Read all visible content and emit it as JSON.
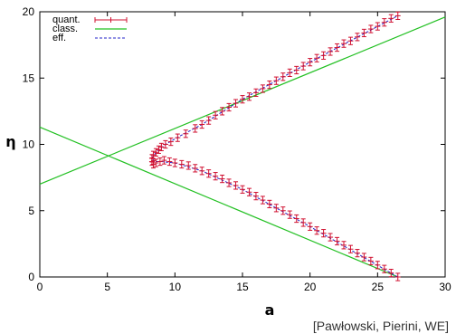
{
  "chart_data": {
    "type": "line",
    "xlabel": "a",
    "ylabel": "η",
    "xlim": [
      0,
      30
    ],
    "ylim": [
      0,
      20
    ],
    "x_ticks": [
      "0",
      "5",
      "10",
      "15",
      "20",
      "25",
      "30"
    ],
    "y_ticks": [
      "0",
      "5",
      "10",
      "15",
      "20"
    ],
    "legend_position": "top-left",
    "grid": false,
    "series": [
      {
        "name": "quant.",
        "style": "errorbar",
        "color": "#d01030",
        "error": 0.28,
        "points": [
          [
            26.5,
            0.0
          ],
          [
            26.0,
            0.3
          ],
          [
            25.5,
            0.6
          ],
          [
            25.0,
            0.9
          ],
          [
            24.5,
            1.2
          ],
          [
            24.0,
            1.5
          ],
          [
            23.5,
            1.8
          ],
          [
            23.0,
            2.1
          ],
          [
            22.5,
            2.4
          ],
          [
            22.0,
            2.7
          ],
          [
            21.5,
            3.0
          ],
          [
            21.0,
            3.3
          ],
          [
            20.5,
            3.5
          ],
          [
            20.0,
            3.8
          ],
          [
            19.5,
            4.1
          ],
          [
            19.0,
            4.4
          ],
          [
            18.5,
            4.7
          ],
          [
            18.0,
            5.0
          ],
          [
            17.5,
            5.2
          ],
          [
            17.0,
            5.5
          ],
          [
            16.5,
            5.8
          ],
          [
            16.0,
            6.1
          ],
          [
            15.5,
            6.4
          ],
          [
            15.0,
            6.6
          ],
          [
            14.5,
            6.9
          ],
          [
            14.0,
            7.1
          ],
          [
            13.5,
            7.4
          ],
          [
            13.0,
            7.6
          ],
          [
            12.5,
            7.8
          ],
          [
            12.0,
            8.0
          ],
          [
            11.5,
            8.2
          ],
          [
            11.0,
            8.4
          ],
          [
            10.5,
            8.5
          ],
          [
            10.0,
            8.6
          ],
          [
            9.6,
            8.7
          ],
          [
            9.2,
            8.8
          ],
          [
            8.9,
            8.7
          ],
          [
            8.6,
            8.6
          ],
          [
            8.4,
            8.5
          ],
          [
            8.3,
            8.7
          ],
          [
            8.3,
            8.95
          ],
          [
            8.4,
            9.2
          ],
          [
            8.6,
            9.4
          ],
          [
            8.8,
            9.6
          ],
          [
            9.0,
            9.8
          ],
          [
            9.3,
            10.0
          ],
          [
            9.7,
            10.2
          ],
          [
            10.2,
            10.5
          ],
          [
            10.8,
            10.8
          ],
          [
            11.5,
            11.2
          ],
          [
            12.0,
            11.5
          ],
          [
            12.5,
            11.8
          ],
          [
            13.0,
            12.2
          ],
          [
            13.5,
            12.5
          ],
          [
            14.0,
            12.8
          ],
          [
            14.5,
            13.1
          ],
          [
            15.0,
            13.4
          ],
          [
            15.5,
            13.6
          ],
          [
            16.0,
            13.9
          ],
          [
            16.5,
            14.2
          ],
          [
            17.0,
            14.5
          ],
          [
            17.5,
            14.8
          ],
          [
            18.0,
            15.1
          ],
          [
            18.5,
            15.4
          ],
          [
            19.0,
            15.6
          ],
          [
            19.5,
            15.9
          ],
          [
            20.0,
            16.2
          ],
          [
            20.5,
            16.5
          ],
          [
            21.0,
            16.7
          ],
          [
            21.5,
            17.0
          ],
          [
            22.0,
            17.3
          ],
          [
            22.5,
            17.6
          ],
          [
            23.0,
            17.8
          ],
          [
            23.5,
            18.1
          ],
          [
            24.0,
            18.4
          ],
          [
            24.5,
            18.7
          ],
          [
            25.0,
            18.9
          ],
          [
            25.5,
            19.2
          ],
          [
            26.0,
            19.5
          ],
          [
            26.5,
            19.7
          ]
        ]
      },
      {
        "name": "class.",
        "style": "line",
        "color": "#22c022",
        "lines": [
          [
            [
              0,
              11.3
            ],
            [
              26.5,
              0.0
            ]
          ],
          [
            [
              0,
              7.0
            ],
            [
              30,
              19.6
            ]
          ]
        ]
      },
      {
        "name": "eff.",
        "style": "dashed",
        "color": "#2020c8",
        "points": [
          [
            26.5,
            0.0
          ],
          [
            20.0,
            3.8
          ],
          [
            15.0,
            6.6
          ],
          [
            12.0,
            8.0
          ],
          [
            10.0,
            8.6
          ],
          [
            9.0,
            8.7
          ],
          [
            8.5,
            8.7
          ],
          [
            8.3,
            8.95
          ],
          [
            8.6,
            9.4
          ],
          [
            9.3,
            10.0
          ],
          [
            10.5,
            10.7
          ],
          [
            12.0,
            11.5
          ],
          [
            15.0,
            13.4
          ],
          [
            20.0,
            16.2
          ],
          [
            26.5,
            19.7
          ]
        ]
      }
    ]
  },
  "credit": "[Pawłowski, Pierini, WE]"
}
